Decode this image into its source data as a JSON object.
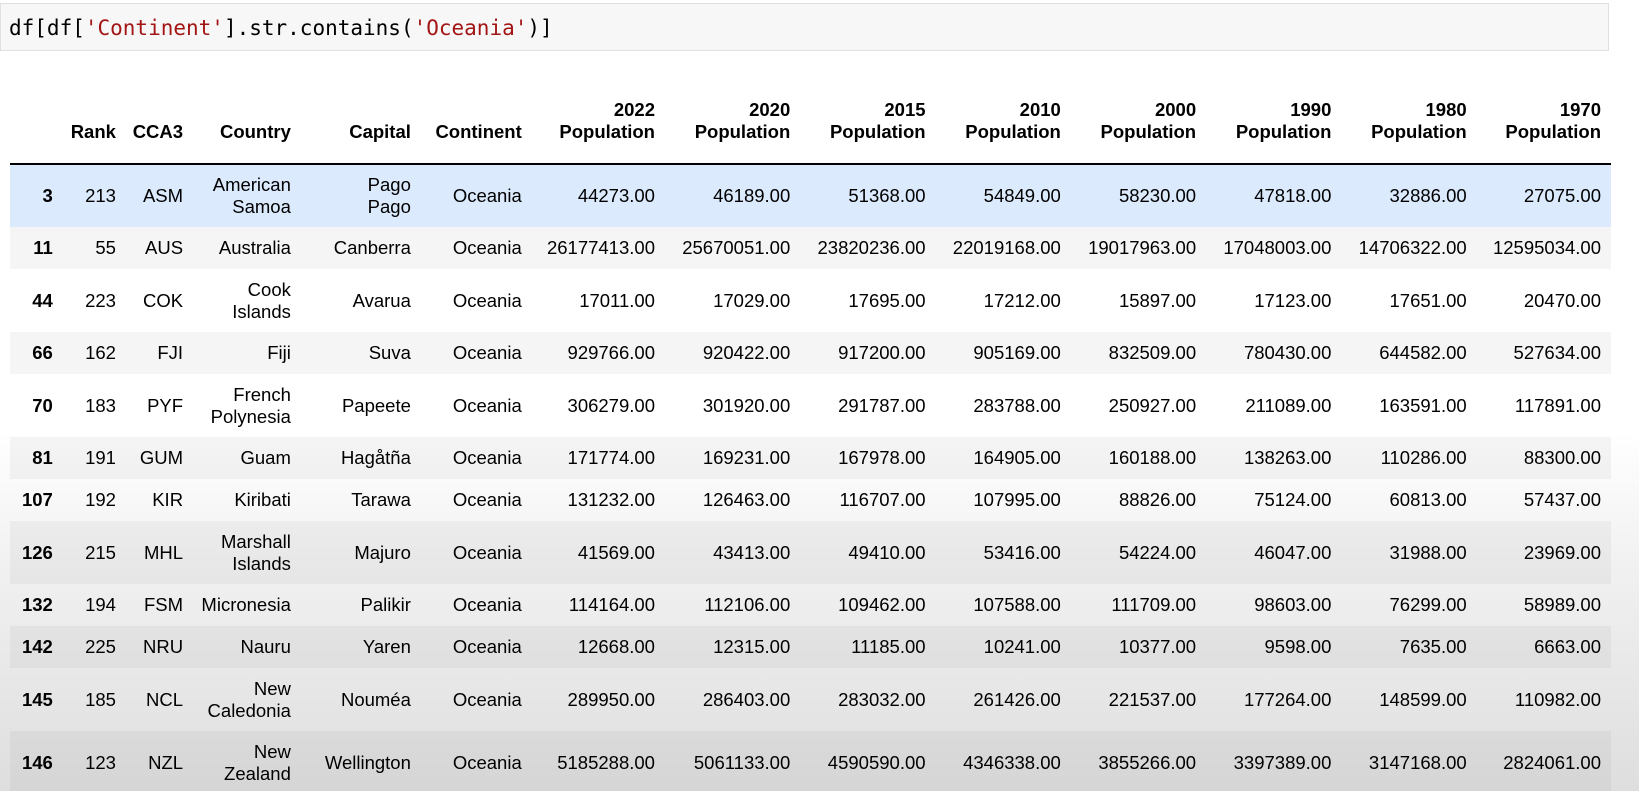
{
  "code": {
    "pre1": "df[df[",
    "str1": "'Continent'",
    "mid": "].str.contains(",
    "str2": "'Oceania'",
    "post": ")]"
  },
  "table": {
    "headers": [
      {
        "line1": "",
        "line2": ""
      },
      {
        "line1": "",
        "line2": "Rank"
      },
      {
        "line1": "",
        "line2": "CCA3"
      },
      {
        "line1": "",
        "line2": "Country"
      },
      {
        "line1": "",
        "line2": "Capital"
      },
      {
        "line1": "",
        "line2": "Continent"
      },
      {
        "line1": "2022",
        "line2": "Population"
      },
      {
        "line1": "2020",
        "line2": "Population"
      },
      {
        "line1": "2015",
        "line2": "Population"
      },
      {
        "line1": "2010",
        "line2": "Population"
      },
      {
        "line1": "2000",
        "line2": "Population"
      },
      {
        "line1": "1990",
        "line2": "Population"
      },
      {
        "line1": "1980",
        "line2": "Population"
      },
      {
        "line1": "1970",
        "line2": "Population"
      }
    ],
    "rows": [
      {
        "cells": [
          "3",
          "213",
          "ASM",
          "American Samoa",
          "Pago Pago",
          "Oceania",
          "44273.00",
          "46189.00",
          "51368.00",
          "54849.00",
          "58230.00",
          "47818.00",
          "32886.00",
          "27075.00"
        ],
        "country": [
          "American",
          "Samoa"
        ],
        "capital": [
          "Pago",
          "Pago"
        ]
      },
      {
        "cells": [
          "11",
          "55",
          "AUS",
          "Australia",
          "Canberra",
          "Oceania",
          "26177413.00",
          "25670051.00",
          "23820236.00",
          "22019168.00",
          "19017963.00",
          "17048003.00",
          "14706322.00",
          "12595034.00"
        ],
        "country": [
          "Australia"
        ],
        "capital": [
          "Canberra"
        ]
      },
      {
        "cells": [
          "44",
          "223",
          "COK",
          "Cook Islands",
          "Avarua",
          "Oceania",
          "17011.00",
          "17029.00",
          "17695.00",
          "17212.00",
          "15897.00",
          "17123.00",
          "17651.00",
          "20470.00"
        ],
        "country": [
          "Cook",
          "Islands"
        ],
        "capital": [
          "Avarua"
        ]
      },
      {
        "cells": [
          "66",
          "162",
          "FJI",
          "Fiji",
          "Suva",
          "Oceania",
          "929766.00",
          "920422.00",
          "917200.00",
          "905169.00",
          "832509.00",
          "780430.00",
          "644582.00",
          "527634.00"
        ],
        "country": [
          "Fiji"
        ],
        "capital": [
          "Suva"
        ]
      },
      {
        "cells": [
          "70",
          "183",
          "PYF",
          "French Polynesia",
          "Papeete",
          "Oceania",
          "306279.00",
          "301920.00",
          "291787.00",
          "283788.00",
          "250927.00",
          "211089.00",
          "163591.00",
          "117891.00"
        ],
        "country": [
          "French",
          "Polynesia"
        ],
        "capital": [
          "Papeete"
        ]
      },
      {
        "cells": [
          "81",
          "191",
          "GUM",
          "Guam",
          "Hagåtña",
          "Oceania",
          "171774.00",
          "169231.00",
          "167978.00",
          "164905.00",
          "160188.00",
          "138263.00",
          "110286.00",
          "88300.00"
        ],
        "country": [
          "Guam"
        ],
        "capital": [
          "Hagåtña"
        ]
      },
      {
        "cells": [
          "107",
          "192",
          "KIR",
          "Kiribati",
          "Tarawa",
          "Oceania",
          "131232.00",
          "126463.00",
          "116707.00",
          "107995.00",
          "88826.00",
          "75124.00",
          "60813.00",
          "57437.00"
        ],
        "country": [
          "Kiribati"
        ],
        "capital": [
          "Tarawa"
        ]
      },
      {
        "cells": [
          "126",
          "215",
          "MHL",
          "Marshall Islands",
          "Majuro",
          "Oceania",
          "41569.00",
          "43413.00",
          "49410.00",
          "53416.00",
          "54224.00",
          "46047.00",
          "31988.00",
          "23969.00"
        ],
        "country": [
          "Marshall",
          "Islands"
        ],
        "capital": [
          "Majuro"
        ]
      },
      {
        "cells": [
          "132",
          "194",
          "FSM",
          "Micronesia",
          "Palikir",
          "Oceania",
          "114164.00",
          "112106.00",
          "109462.00",
          "107588.00",
          "111709.00",
          "98603.00",
          "76299.00",
          "58989.00"
        ],
        "country": [
          "Micronesia"
        ],
        "capital": [
          "Palikir"
        ]
      },
      {
        "cells": [
          "142",
          "225",
          "NRU",
          "Nauru",
          "Yaren",
          "Oceania",
          "12668.00",
          "12315.00",
          "11185.00",
          "10241.00",
          "10377.00",
          "9598.00",
          "7635.00",
          "6663.00"
        ],
        "country": [
          "Nauru"
        ],
        "capital": [
          "Yaren"
        ]
      },
      {
        "cells": [
          "145",
          "185",
          "NCL",
          "New Caledonia",
          "Nouméa",
          "Oceania",
          "289950.00",
          "286403.00",
          "283032.00",
          "261426.00",
          "221537.00",
          "177264.00",
          "148599.00",
          "110982.00"
        ],
        "country": [
          "New",
          "Caledonia"
        ],
        "capital": [
          "Nouméa"
        ]
      },
      {
        "cells": [
          "146",
          "123",
          "NZL",
          "New Zealand",
          "Wellington",
          "Oceania",
          "5185288.00",
          "5061133.00",
          "4590590.00",
          "4346338.00",
          "3855266.00",
          "3397389.00",
          "3147168.00",
          "2824061.00"
        ],
        "country": [
          "New",
          "Zealand"
        ],
        "capital": [
          "Wellington"
        ]
      }
    ]
  }
}
